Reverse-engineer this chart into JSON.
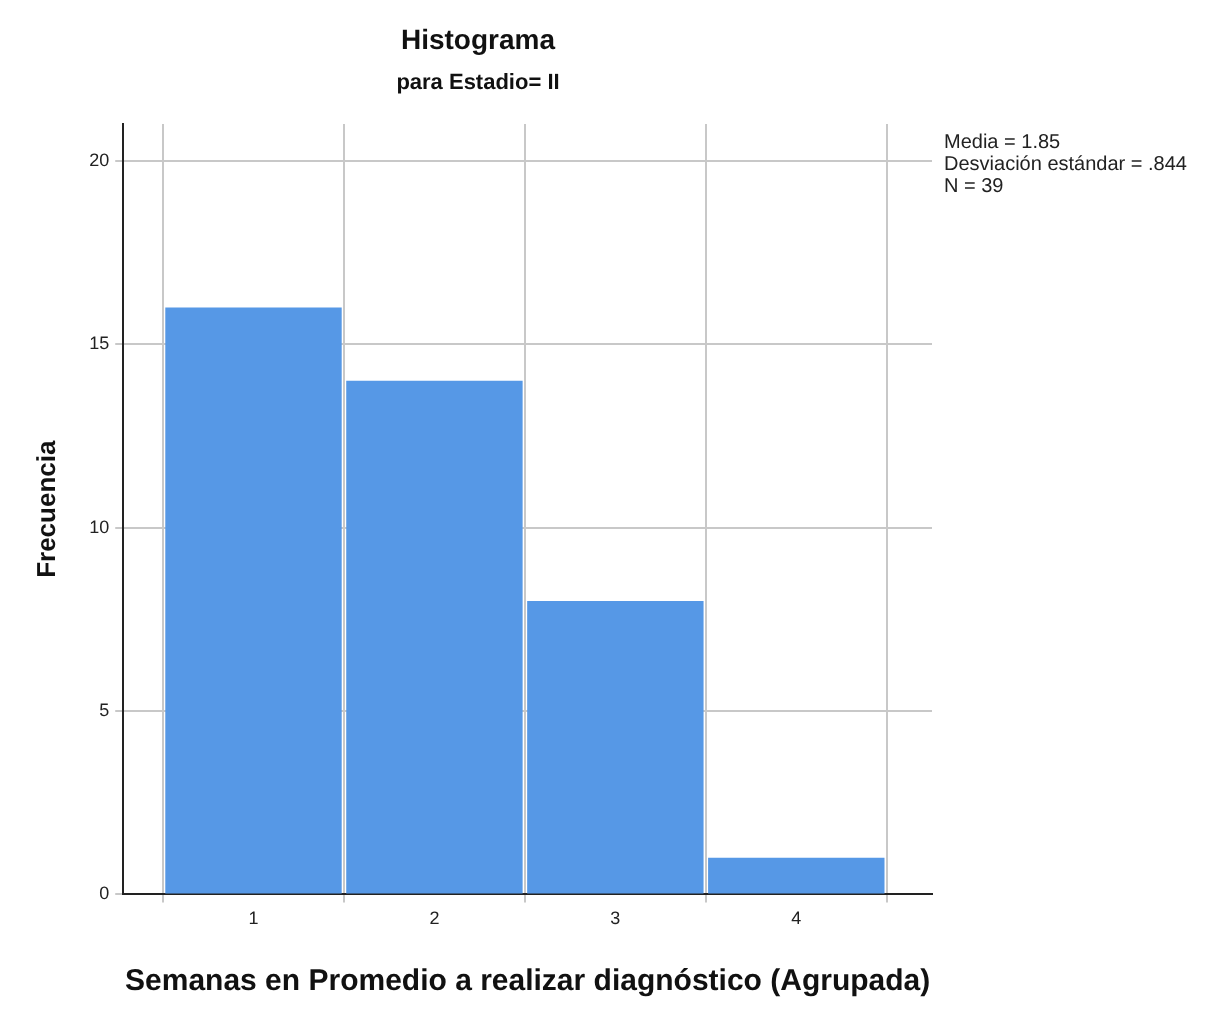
{
  "chart_data": {
    "type": "histogram",
    "title": "Histograma",
    "subtitle": "para Estadio= II",
    "xlabel": "Semanas en Promedio a realizar diagnóstico (Agrupada)",
    "ylabel": "Frecuencia",
    "bins": [
      0.5,
      1.5,
      2.5,
      3.5,
      4.5
    ],
    "values": [
      16,
      14,
      8,
      1
    ],
    "color": "#5698e6",
    "xlim": [
      0.28,
      4.75
    ],
    "xticks": [
      1,
      2,
      3,
      4
    ],
    "ylim": [
      0,
      21
    ],
    "yticks": [
      0,
      5,
      10,
      15,
      20
    ],
    "grid": true,
    "annotations": [
      "Media = 1.85",
      "Desviación estándar = .844",
      "N = 39"
    ]
  }
}
